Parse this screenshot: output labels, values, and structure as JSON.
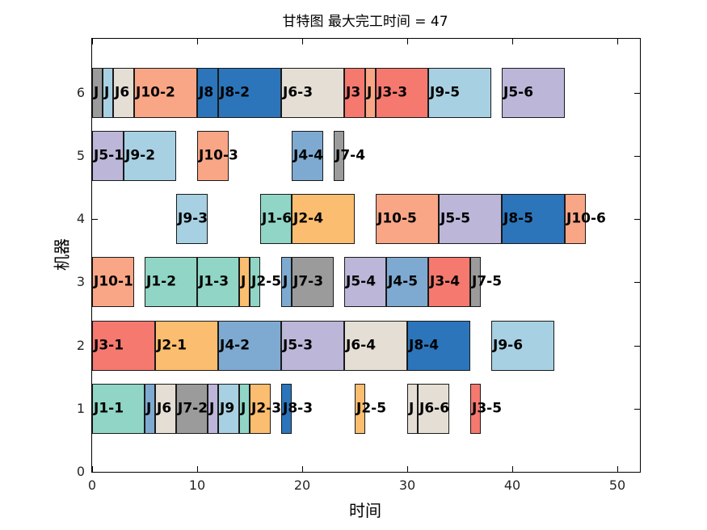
{
  "chart_data": {
    "type": "gantt",
    "title": "甘特图 最大完工时间 = 47",
    "xlabel": "时间",
    "ylabel": "机器",
    "makespan": 47,
    "xlim": [
      0,
      52
    ],
    "ylim": [
      0,
      6.85
    ],
    "xticks": [
      "0",
      "10",
      "20",
      "30",
      "40",
      "50"
    ],
    "yticks": [
      "0",
      "1",
      "2",
      "3",
      "4",
      "5",
      "6"
    ],
    "grid": false,
    "palette": {
      "teal": "#90D5C5",
      "orange": "#FBBD6F",
      "red": "#F5796F",
      "steelblue": "#7EAAD1",
      "purple": "#BCB6D8",
      "beige": "#E5DED4",
      "gray": "#9B9B9B",
      "blue": "#2C75BB",
      "lightblue": "#A7D0E2",
      "salmon": "#F9A687"
    },
    "machines": [
      {
        "machine": 6,
        "ops": [
          {
            "label": "J",
            "color": "gray",
            "start": 0,
            "end": 1
          },
          {
            "label": "J",
            "color": "lightblue",
            "start": 1,
            "end": 2
          },
          {
            "label": "J6",
            "color": "beige",
            "start": 2,
            "end": 4
          },
          {
            "label": "J10-2",
            "color": "salmon",
            "start": 4,
            "end": 10
          },
          {
            "label": "J8",
            "color": "blue",
            "start": 10,
            "end": 12
          },
          {
            "label": "J8-2",
            "color": "blue",
            "start": 12,
            "end": 18
          },
          {
            "label": "J6-3",
            "color": "beige",
            "start": 18,
            "end": 24
          },
          {
            "label": "J3",
            "color": "red",
            "start": 24,
            "end": 26
          },
          {
            "label": "J",
            "color": "salmon",
            "start": 26,
            "end": 27
          },
          {
            "label": "J3-3",
            "color": "red",
            "start": 27,
            "end": 32
          },
          {
            "label": "J9-5",
            "color": "lightblue",
            "start": 32,
            "end": 38
          },
          {
            "label": "J5-6",
            "color": "purple",
            "start": 39,
            "end": 45
          }
        ]
      },
      {
        "machine": 5,
        "ops": [
          {
            "label": "J5-1",
            "color": "purple",
            "start": 0,
            "end": 3
          },
          {
            "label": "J9-2",
            "color": "lightblue",
            "start": 3,
            "end": 8
          },
          {
            "label": "J10-3",
            "color": "salmon",
            "start": 10,
            "end": 13
          },
          {
            "label": "J4-4",
            "color": "steelblue",
            "start": 19,
            "end": 22
          },
          {
            "label": "J7-4",
            "color": "gray",
            "start": 23,
            "end": 24
          }
        ]
      },
      {
        "machine": 4,
        "ops": [
          {
            "label": "J9-3",
            "color": "lightblue",
            "start": 8,
            "end": 11
          },
          {
            "label": "J1-6",
            "color": "teal",
            "start": 16,
            "end": 19
          },
          {
            "label": "J2-4",
            "color": "orange",
            "start": 19,
            "end": 25
          },
          {
            "label": "J10-5",
            "color": "salmon",
            "start": 27,
            "end": 33
          },
          {
            "label": "J5-5",
            "color": "purple",
            "start": 33,
            "end": 39
          },
          {
            "label": "J8-5",
            "color": "blue",
            "start": 39,
            "end": 45
          },
          {
            "label": "J10-6",
            "color": "salmon",
            "start": 45,
            "end": 47
          }
        ]
      },
      {
        "machine": 3,
        "ops": [
          {
            "label": "J10-1",
            "color": "salmon",
            "start": 0,
            "end": 4
          },
          {
            "label": "J1-2",
            "color": "teal",
            "start": 5,
            "end": 10
          },
          {
            "label": "J1-3",
            "color": "teal",
            "start": 10,
            "end": 14
          },
          {
            "label": "J",
            "color": "orange",
            "start": 14,
            "end": 15
          },
          {
            "label": "J2-5",
            "color": "teal",
            "start": 15,
            "end": 16
          },
          {
            "label": "J",
            "color": "steelblue",
            "start": 18,
            "end": 19
          },
          {
            "label": "J7-3",
            "color": "gray",
            "start": 19,
            "end": 23
          },
          {
            "label": "J5-4",
            "color": "purple",
            "start": 24,
            "end": 28
          },
          {
            "label": "J4-5",
            "color": "steelblue",
            "start": 28,
            "end": 32
          },
          {
            "label": "J3-4",
            "color": "red",
            "start": 32,
            "end": 36
          },
          {
            "label": "J7-5",
            "color": "gray",
            "start": 36,
            "end": 37
          }
        ]
      },
      {
        "machine": 2,
        "ops": [
          {
            "label": "J3-1",
            "color": "red",
            "start": 0,
            "end": 6
          },
          {
            "label": "J2-1",
            "color": "orange",
            "start": 6,
            "end": 12
          },
          {
            "label": "J4-2",
            "color": "steelblue",
            "start": 12,
            "end": 18
          },
          {
            "label": "J5-3",
            "color": "purple",
            "start": 18,
            "end": 24
          },
          {
            "label": "J6-4",
            "color": "beige",
            "start": 24,
            "end": 30
          },
          {
            "label": "J8-4",
            "color": "blue",
            "start": 30,
            "end": 36
          },
          {
            "label": "J9-6",
            "color": "lightblue",
            "start": 38,
            "end": 44
          }
        ]
      },
      {
        "machine": 1,
        "ops": [
          {
            "label": "J1-1",
            "color": "teal",
            "start": 0,
            "end": 5
          },
          {
            "label": "J",
            "color": "steelblue",
            "start": 5,
            "end": 6
          },
          {
            "label": "J6",
            "color": "beige",
            "start": 6,
            "end": 8
          },
          {
            "label": "J7-2",
            "color": "gray",
            "start": 8,
            "end": 11
          },
          {
            "label": "J",
            "color": "purple",
            "start": 11,
            "end": 12
          },
          {
            "label": "J9",
            "color": "lightblue",
            "start": 12,
            "end": 14
          },
          {
            "label": "J",
            "color": "teal",
            "start": 14,
            "end": 15
          },
          {
            "label": "J2-3",
            "color": "orange",
            "start": 15,
            "end": 17
          },
          {
            "label": "J8-3",
            "color": "blue",
            "start": 18,
            "end": 19
          },
          {
            "label": "J2-5",
            "color": "orange",
            "start": 25,
            "end": 26
          },
          {
            "label": "J",
            "color": "beige",
            "start": 30,
            "end": 31
          },
          {
            "label": "J6-6",
            "color": "beige",
            "start": 31,
            "end": 34
          },
          {
            "label": "J3-5",
            "color": "red",
            "start": 36,
            "end": 37
          }
        ]
      }
    ]
  },
  "style_colors": {
    "background": "#ffffff",
    "axis_line": "#000000",
    "tick_label": "#262626",
    "bar_border": "#1a1a1a",
    "bar_label": "#000000"
  }
}
